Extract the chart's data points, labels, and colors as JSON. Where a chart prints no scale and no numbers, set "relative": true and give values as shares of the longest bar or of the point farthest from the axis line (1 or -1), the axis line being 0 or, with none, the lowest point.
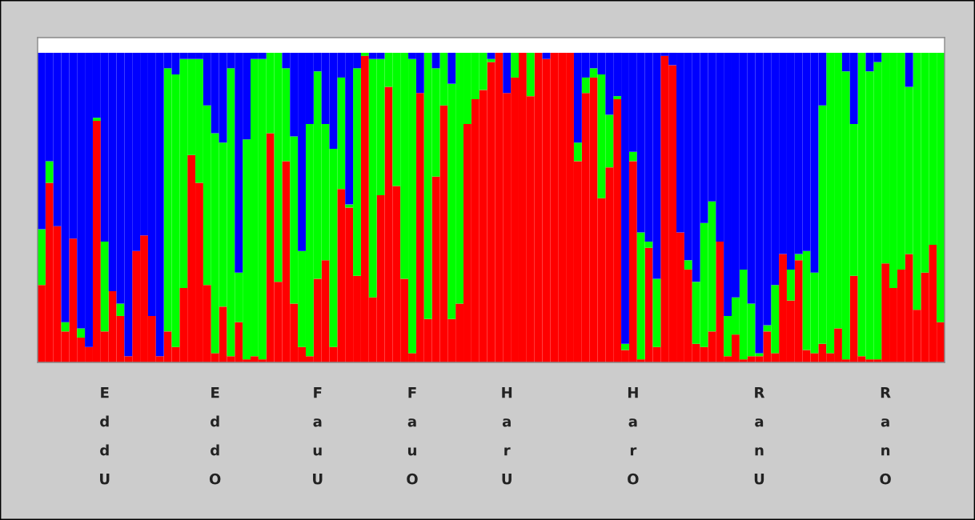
{
  "chart_data": {
    "type": "bar",
    "stacked": true,
    "relative": true,
    "grid": false,
    "legend": false,
    "categories": [
      null,
      null,
      null,
      null,
      null,
      null,
      null,
      null,
      "EddU",
      null,
      null,
      null,
      null,
      null,
      null,
      null,
      null,
      null,
      null,
      null,
      null,
      null,
      "EddO",
      null,
      null,
      null,
      null,
      null,
      null,
      null,
      null,
      null,
      null,
      null,
      null,
      "FauU",
      null,
      null,
      null,
      null,
      null,
      null,
      null,
      null,
      null,
      null,
      null,
      "FauO",
      null,
      null,
      null,
      null,
      null,
      null,
      null,
      null,
      null,
      null,
      null,
      "HarU",
      null,
      null,
      null,
      null,
      null,
      null,
      null,
      null,
      null,
      null,
      null,
      null,
      null,
      null,
      null,
      "HarO",
      null,
      null,
      null,
      null,
      null,
      null,
      null,
      null,
      null,
      null,
      null,
      null,
      null,
      null,
      null,
      "RanU",
      null,
      null,
      null,
      null,
      null,
      null,
      null,
      null,
      null,
      null,
      null,
      null,
      null,
      null,
      null,
      "RanO",
      null,
      null,
      null,
      null,
      null,
      null,
      null
    ],
    "series": [
      {
        "color": "#ff0000",
        "values": [
          0.25,
          0.58,
          0.44,
          0.1,
          0.4,
          0.08,
          0.05,
          0.78,
          0.1,
          0.23,
          0.15,
          0.02,
          0.36,
          0.41,
          0.15,
          0.02,
          0.1,
          0.05,
          0.24,
          0.67,
          0.58,
          0.25,
          0.03,
          0.18,
          0.02,
          0.13,
          0.01,
          0.02,
          0.01,
          0.74,
          0.26,
          0.65,
          0.19,
          0.05,
          0.02,
          0.27,
          0.33,
          0.05,
          0.56,
          0.5,
          0.28,
          0.99,
          0.21,
          0.54,
          0.89,
          0.57,
          0.27,
          0.03,
          0.87,
          0.14,
          0.6,
          0.83,
          0.14,
          0.19,
          0.77,
          0.85,
          0.88,
          0.97,
          1,
          0.87,
          0.92,
          1,
          0.86,
          1,
          0.98,
          1,
          1,
          1,
          0.65,
          0.87,
          0.92,
          0.53,
          0.63,
          0.85,
          0.04,
          0.65,
          0.01,
          0.37,
          0.05,
          0.99,
          0.96,
          0.42,
          0.3,
          0.06,
          0.05,
          0.1,
          0.39,
          0.02,
          0.09,
          0.01,
          0.02,
          0.02,
          0.1,
          0.03,
          0.35,
          0.2,
          0.33,
          0.04,
          0.03,
          0.06,
          0.03,
          0.11,
          0.01,
          0.28,
          0.02,
          0.01,
          0.01,
          0.32,
          0.24,
          0.3,
          0.35,
          0.17,
          0.29,
          0.38,
          0.13
        ]
      },
      {
        "color": "#00ff00",
        "values": [
          0.18,
          0.07,
          0,
          0.03,
          0,
          0.03,
          0,
          0.01,
          0.29,
          0,
          0.04,
          0,
          0,
          0,
          0,
          0,
          0.85,
          0.88,
          0.74,
          0.31,
          0.4,
          0.58,
          0.71,
          0.53,
          0.93,
          0.16,
          0.71,
          0.96,
          0.97,
          0.26,
          0.74,
          0.3,
          0.54,
          0.31,
          0.75,
          0.67,
          0.44,
          0.64,
          0.36,
          0.01,
          0.67,
          0.01,
          0.77,
          0.44,
          0.11,
          0.43,
          0.73,
          0.95,
          0,
          0.86,
          0.35,
          0.17,
          0.76,
          0.81,
          0.23,
          0.15,
          0.12,
          0.01,
          0,
          0,
          0.08,
          0,
          0.14,
          0,
          0,
          0,
          0,
          0,
          0.06,
          0.05,
          0.03,
          0.4,
          0.17,
          0.01,
          0.02,
          0.03,
          0.41,
          0.02,
          0.22,
          0,
          0,
          0,
          0.03,
          0.2,
          0.4,
          0.42,
          0,
          0.13,
          0.12,
          0.29,
          0.17,
          0.01,
          0.02,
          0.22,
          0,
          0.1,
          0.02,
          0.32,
          0.26,
          0.77,
          0.97,
          0.89,
          0.93,
          0.49,
          0.98,
          0.93,
          0.96,
          0.68,
          0.76,
          0.7,
          0.54,
          0.83,
          0.71,
          0.62,
          0.87
        ]
      },
      {
        "color": "#0000ff",
        "values": [
          0.57,
          0.35,
          0.56,
          0.87,
          0.6,
          0.89,
          0.95,
          0.21,
          0.61,
          0.77,
          0.81,
          0.98,
          0.64,
          0.59,
          0.85,
          0.98,
          0.05,
          0.07,
          0.02,
          0.02,
          0.02,
          0.17,
          0.26,
          0.29,
          0.05,
          0.71,
          0.28,
          0.02,
          0.02,
          0,
          0,
          0.05,
          0.27,
          0.64,
          0.23,
          0.06,
          0.23,
          0.31,
          0.08,
          0.49,
          0.05,
          0,
          0.02,
          0.02,
          0,
          0,
          0,
          0.02,
          0.13,
          0,
          0.05,
          0,
          0.1,
          0,
          0,
          0,
          0,
          0.02,
          0,
          0.13,
          0,
          0,
          0,
          0,
          0.02,
          0,
          0,
          0,
          0.29,
          0.08,
          0.05,
          0.07,
          0.2,
          0.14,
          0.94,
          0.32,
          0.58,
          0.61,
          0.73,
          0.01,
          0.04,
          0.58,
          0.67,
          0.74,
          0.55,
          0.48,
          0.61,
          0.85,
          0.79,
          0.7,
          0.81,
          0.97,
          0.88,
          0.75,
          0.65,
          0.7,
          0.65,
          0.64,
          0.71,
          0.17,
          0,
          0,
          0.06,
          0.23,
          0,
          0.06,
          0.03,
          0,
          0,
          0,
          0.11,
          0,
          0,
          0,
          0
        ]
      }
    ]
  }
}
